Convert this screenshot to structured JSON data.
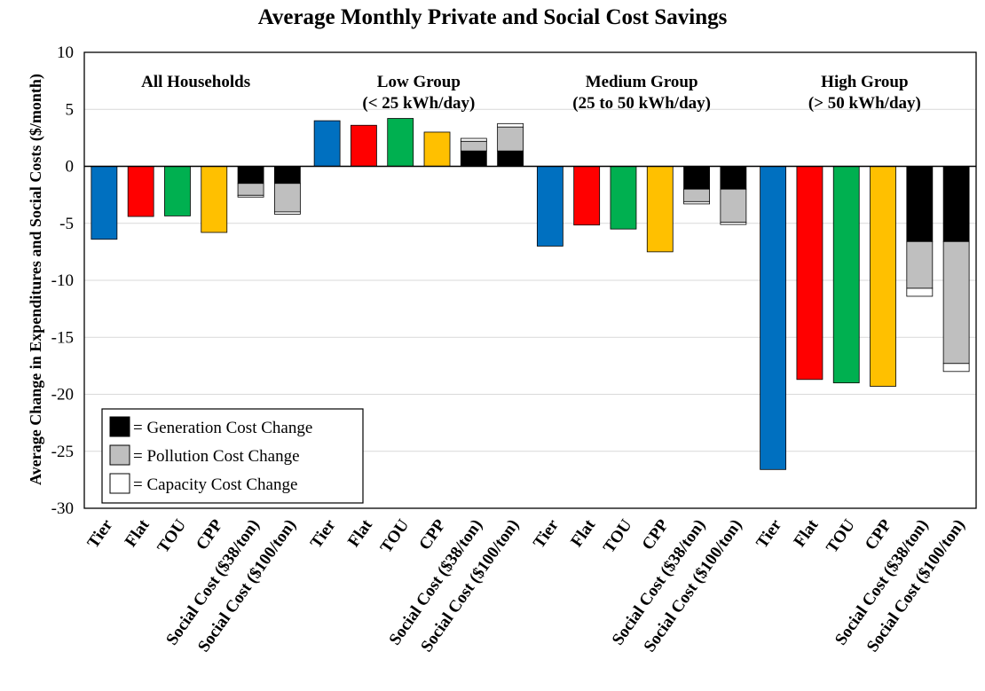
{
  "chart_data": {
    "type": "bar",
    "title": "Average Monthly Private and Social Cost Savings",
    "ylabel": "Average Change in Expenditures and Social Costs ($/month)",
    "ylim": [
      -30,
      10
    ],
    "yticks": [
      10,
      5,
      0,
      -5,
      -10,
      -15,
      -20,
      -25,
      -30
    ],
    "grid": "horizontal",
    "categories": [
      "Tier",
      "Flat",
      "TOU",
      "CPP",
      "Social Cost ($38/ton)",
      "Social Cost ($100/ton)"
    ],
    "groups": [
      {
        "label_lines": [
          "All Households"
        ],
        "bars": [
          {
            "category": "Tier",
            "value": -6.4,
            "color": "#0070C0"
          },
          {
            "category": "Flat",
            "value": -4.4,
            "color": "#FF0000"
          },
          {
            "category": "TOU",
            "value": -4.35,
            "color": "#00B050"
          },
          {
            "category": "CPP",
            "value": -5.8,
            "color": "#FFC000"
          },
          {
            "category": "Social Cost ($38/ton)",
            "stack": {
              "generation": -1.5,
              "pollution": -1.05,
              "capacity": -0.15
            }
          },
          {
            "category": "Social Cost ($100/ton)",
            "stack": {
              "generation": -1.5,
              "pollution": -2.5,
              "capacity": -0.2
            }
          }
        ]
      },
      {
        "label_lines": [
          "Low Group",
          "(< 25 kWh/day)"
        ],
        "bars": [
          {
            "category": "Tier",
            "value": 4.0,
            "color": "#0070C0"
          },
          {
            "category": "Flat",
            "value": 3.6,
            "color": "#FF0000"
          },
          {
            "category": "TOU",
            "value": 4.2,
            "color": "#00B050"
          },
          {
            "category": "CPP",
            "value": 3.0,
            "color": "#FFC000"
          },
          {
            "category": "Social Cost ($38/ton)",
            "stack": {
              "generation": 1.35,
              "pollution": 0.85,
              "capacity": 0.25
            }
          },
          {
            "category": "Social Cost ($100/ton)",
            "stack": {
              "generation": 1.35,
              "pollution": 2.1,
              "capacity": 0.3
            }
          }
        ]
      },
      {
        "label_lines": [
          "Medium Group",
          "(25 to 50 kWh/day)"
        ],
        "bars": [
          {
            "category": "Tier",
            "value": -7.0,
            "color": "#0070C0"
          },
          {
            "category": "Flat",
            "value": -5.15,
            "color": "#FF0000"
          },
          {
            "category": "TOU",
            "value": -5.5,
            "color": "#00B050"
          },
          {
            "category": "CPP",
            "value": -7.5,
            "color": "#FFC000"
          },
          {
            "category": "Social Cost ($38/ton)",
            "stack": {
              "generation": -2.0,
              "pollution": -1.1,
              "capacity": -0.2
            }
          },
          {
            "category": "Social Cost ($100/ton)",
            "stack": {
              "generation": -2.0,
              "pollution": -2.9,
              "capacity": -0.2
            }
          }
        ]
      },
      {
        "label_lines": [
          "High Group",
          "(> 50 kWh/day)"
        ],
        "bars": [
          {
            "category": "Tier",
            "value": -26.6,
            "color": "#0070C0"
          },
          {
            "category": "Flat",
            "value": -18.7,
            "color": "#FF0000"
          },
          {
            "category": "TOU",
            "value": -19.0,
            "color": "#00B050"
          },
          {
            "category": "CPP",
            "value": -19.3,
            "color": "#FFC000"
          },
          {
            "category": "Social Cost ($38/ton)",
            "stack": {
              "generation": -6.6,
              "pollution": -4.1,
              "capacity": -0.7
            }
          },
          {
            "category": "Social Cost ($100/ton)",
            "stack": {
              "generation": -6.6,
              "pollution": -10.7,
              "capacity": -0.7
            }
          }
        ]
      }
    ],
    "legend": {
      "placement": "bottom-left",
      "entries": [
        {
          "key": "generation",
          "label": "= Generation Cost Change",
          "color": "#000000"
        },
        {
          "key": "pollution",
          "label": "= Pollution Cost Change",
          "color": "#BFBFBF"
        },
        {
          "key": "capacity",
          "label": "= Capacity Cost Change",
          "color": "#FFFFFF"
        }
      ]
    }
  }
}
